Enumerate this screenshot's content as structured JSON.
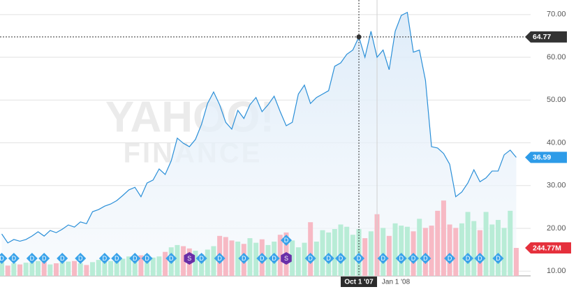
{
  "chart_data": {
    "type": "line",
    "watermark": [
      "YAHOO!",
      "FINANCE"
    ],
    "categories": [
      null,
      null,
      null,
      null,
      null,
      null,
      null,
      null,
      null,
      null,
      null,
      null,
      null,
      null,
      null,
      null,
      null,
      null,
      null,
      null,
      null,
      null,
      null,
      null,
      null,
      null,
      null,
      null,
      null,
      null,
      null,
      null,
      null,
      null,
      null,
      null,
      null,
      null,
      null,
      null,
      null,
      null,
      null,
      null,
      null,
      null,
      null,
      null,
      null,
      null,
      null,
      null,
      null,
      null,
      null,
      null,
      null,
      null,
      null,
      "Oct 1 '07",
      null,
      null,
      "Jan 1 '08",
      null,
      null,
      null,
      null,
      null,
      null,
      null,
      null,
      null,
      null,
      null,
      null,
      null,
      null,
      null,
      null,
      null,
      null,
      null,
      null,
      null,
      null,
      null
    ],
    "values": [
      18.7,
      16.6,
      17.4,
      17,
      17.4,
      18.2,
      19.2,
      18.2,
      19.5,
      19,
      19.8,
      20.8,
      20.3,
      21.5,
      21.1,
      23.9,
      24.4,
      25.2,
      25.7,
      26.5,
      27.7,
      29,
      29.6,
      27.4,
      30.6,
      31.3,
      33.9,
      32.6,
      35.8,
      41.1,
      39.9,
      39.1,
      40.8,
      44.3,
      49.2,
      51.9,
      48.9,
      44.8,
      43.2,
      47.6,
      45.7,
      48.9,
      50.6,
      47.3,
      48.9,
      50.9,
      47.3,
      44,
      44.8,
      51.4,
      53.5,
      49.2,
      50.6,
      51.4,
      52.2,
      57.9,
      58.7,
      60.7,
      61.7,
      64.77,
      60,
      66.1,
      60,
      61.7,
      57.1,
      66.1,
      69.8,
      70.5,
      61.2,
      61.7,
      54.6,
      39.1,
      38.8,
      37.5,
      35,
      27.4,
      28.5,
      30.6,
      33.7,
      30.9,
      31.8,
      33.4,
      33.4,
      37.2,
      38.3,
      36.59
    ],
    "color": "#2a8fd8",
    "area_color": "#e3effa",
    "ylim": [
      8.9,
      73.4
    ],
    "yticks": [
      {
        "value": 10,
        "label": "10.00"
      },
      {
        "value": 20,
        "label": "20.00"
      },
      {
        "value": 30,
        "label": "30.00"
      },
      {
        "value": 40,
        "label": "40.00"
      },
      {
        "value": 50,
        "label": "50.00"
      },
      {
        "value": 60,
        "label": "60.00"
      },
      {
        "value": 70,
        "label": "70.00"
      }
    ],
    "grid": true,
    "crosshair": 59,
    "volume": {
      "axis": "y2",
      "values": [
        120,
        90,
        110,
        100,
        115,
        120,
        130,
        140,
        100,
        110,
        120,
        125,
        130,
        110,
        95,
        120,
        140,
        150,
        130,
        160,
        150,
        170,
        140,
        180,
        190,
        160,
        170,
        210,
        250,
        270,
        260,
        240,
        220,
        190,
        230,
        260,
        350,
        340,
        310,
        300,
        280,
        330,
        290,
        320,
        270,
        300,
        360,
        380,
        310,
        250,
        290,
        470,
        300,
        400,
        380,
        410,
        450,
        430,
        360,
        410,
        330,
        390,
        540,
        420,
        350,
        460,
        440,
        430,
        390,
        500,
        420,
        440,
        570,
        660,
        450,
        420,
        460,
        560,
        480,
        400,
        560,
        450,
        490,
        420,
        570,
        244.77
      ],
      "current_label": "244.77M",
      "up_color": "#b8ecd6",
      "down_color": "#f7b9c4"
    },
    "y2lim": [
      0,
      2417
    ],
    "events": [
      {
        "at": 0,
        "label": "D"
      },
      {
        "at": 2,
        "label": "D"
      },
      {
        "at": 5,
        "label": "D"
      },
      {
        "at": 7,
        "label": "D"
      },
      {
        "at": 10,
        "label": "D"
      },
      {
        "at": 13,
        "label": "D"
      },
      {
        "at": 17,
        "label": "D"
      },
      {
        "at": 19,
        "label": "D"
      },
      {
        "at": 22,
        "label": "D"
      },
      {
        "at": 24,
        "label": "D"
      },
      {
        "at": 28,
        "label": "D"
      },
      {
        "at": 31,
        "label": "S"
      },
      {
        "at": 33,
        "label": "D"
      },
      {
        "at": 36,
        "label": "D"
      },
      {
        "at": 40,
        "label": "D"
      },
      {
        "at": 43,
        "label": "D"
      },
      {
        "at": 45,
        "label": "D"
      },
      {
        "at": 47,
        "label": "S"
      },
      {
        "at": 47,
        "label": "D"
      },
      {
        "at": 51,
        "label": "D"
      },
      {
        "at": 54,
        "label": "D"
      },
      {
        "at": 56,
        "label": "D"
      },
      {
        "at": 59,
        "label": "D"
      },
      {
        "at": 63,
        "label": "D"
      },
      {
        "at": 66,
        "label": "D"
      },
      {
        "at": 68,
        "label": "D"
      },
      {
        "at": 70,
        "label": "D"
      },
      {
        "at": 74,
        "label": "D"
      },
      {
        "at": 77,
        "label": "D"
      },
      {
        "at": 79,
        "label": "D"
      },
      {
        "at": 82,
        "label": "D"
      }
    ],
    "dividend_color": "#3aa3ea",
    "split_color": "#6a2fa8"
  }
}
